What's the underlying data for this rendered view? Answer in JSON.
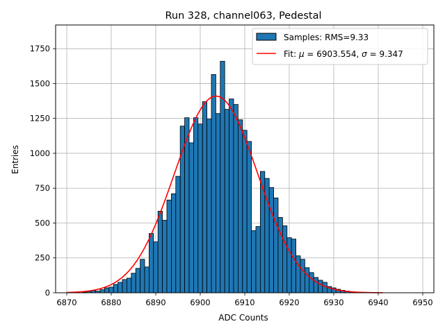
{
  "chart_data": {
    "type": "bar",
    "title": "Run 328, channel063, Pedestal",
    "xlabel": "ADC Counts",
    "ylabel": "Entries",
    "xlim": [
      6867.5,
      6952.5
    ],
    "ylim": [
      0,
      1920
    ],
    "x_ticks": [
      6870,
      6880,
      6890,
      6900,
      6910,
      6920,
      6930,
      6940,
      6950
    ],
    "y_ticks": [
      0,
      250,
      500,
      750,
      1000,
      1250,
      1500,
      1750
    ],
    "grid": true,
    "legend": "top-right",
    "bin_width": 1,
    "bins": [
      {
        "x": 6874,
        "y": 4
      },
      {
        "x": 6875,
        "y": 10
      },
      {
        "x": 6876,
        "y": 15
      },
      {
        "x": 6877,
        "y": 12
      },
      {
        "x": 6878,
        "y": 22
      },
      {
        "x": 6879,
        "y": 35
      },
      {
        "x": 6880,
        "y": 40
      },
      {
        "x": 6881,
        "y": 60
      },
      {
        "x": 6882,
        "y": 75
      },
      {
        "x": 6883,
        "y": 95
      },
      {
        "x": 6884,
        "y": 105
      },
      {
        "x": 6885,
        "y": 140
      },
      {
        "x": 6886,
        "y": 175
      },
      {
        "x": 6887,
        "y": 240
      },
      {
        "x": 6888,
        "y": 185
      },
      {
        "x": 6889,
        "y": 425
      },
      {
        "x": 6890,
        "y": 365
      },
      {
        "x": 6891,
        "y": 585
      },
      {
        "x": 6892,
        "y": 520
      },
      {
        "x": 6893,
        "y": 665
      },
      {
        "x": 6894,
        "y": 710
      },
      {
        "x": 6895,
        "y": 835
      },
      {
        "x": 6896,
        "y": 1195
      },
      {
        "x": 6897,
        "y": 1255
      },
      {
        "x": 6898,
        "y": 1075
      },
      {
        "x": 6899,
        "y": 1255
      },
      {
        "x": 6900,
        "y": 1210
      },
      {
        "x": 6901,
        "y": 1370
      },
      {
        "x": 6902,
        "y": 1245
      },
      {
        "x": 6903,
        "y": 1565
      },
      {
        "x": 6904,
        "y": 1285
      },
      {
        "x": 6905,
        "y": 1660
      },
      {
        "x": 6906,
        "y": 1315
      },
      {
        "x": 6907,
        "y": 1390
      },
      {
        "x": 6908,
        "y": 1350
      },
      {
        "x": 6909,
        "y": 1240
      },
      {
        "x": 6910,
        "y": 1165
      },
      {
        "x": 6911,
        "y": 1085
      },
      {
        "x": 6912,
        "y": 445
      },
      {
        "x": 6913,
        "y": 475
      },
      {
        "x": 6914,
        "y": 870
      },
      {
        "x": 6915,
        "y": 820
      },
      {
        "x": 6916,
        "y": 755
      },
      {
        "x": 6917,
        "y": 680
      },
      {
        "x": 6918,
        "y": 540
      },
      {
        "x": 6919,
        "y": 480
      },
      {
        "x": 6920,
        "y": 395
      },
      {
        "x": 6921,
        "y": 385
      },
      {
        "x": 6922,
        "y": 265
      },
      {
        "x": 6923,
        "y": 240
      },
      {
        "x": 6924,
        "y": 180
      },
      {
        "x": 6925,
        "y": 145
      },
      {
        "x": 6926,
        "y": 110
      },
      {
        "x": 6927,
        "y": 90
      },
      {
        "x": 6928,
        "y": 75
      },
      {
        "x": 6929,
        "y": 45
      },
      {
        "x": 6930,
        "y": 35
      },
      {
        "x": 6931,
        "y": 25
      },
      {
        "x": 6932,
        "y": 18
      },
      {
        "x": 6933,
        "y": 12
      },
      {
        "x": 6934,
        "y": 6
      },
      {
        "x": 6935,
        "y": 4
      },
      {
        "x": 6936,
        "y": 3
      }
    ],
    "fit": {
      "mu": 6903.554,
      "sigma": 9.347,
      "amplitude": 1410,
      "x_range": [
        6870,
        6941
      ]
    },
    "legend_entries": {
      "samples": "Samples: RMS=9.33",
      "fit_prefix": "Fit: ",
      "mu_symbol": "μ",
      "mu_text": " = 6903.554, ",
      "sigma_symbol": "σ",
      "sigma_text": " = 9.347"
    },
    "colors": {
      "bar_fill": "#1f77b4",
      "bar_edge": "#000000",
      "fit_line": "#ff0000",
      "grid": "#b0b0b0"
    }
  }
}
